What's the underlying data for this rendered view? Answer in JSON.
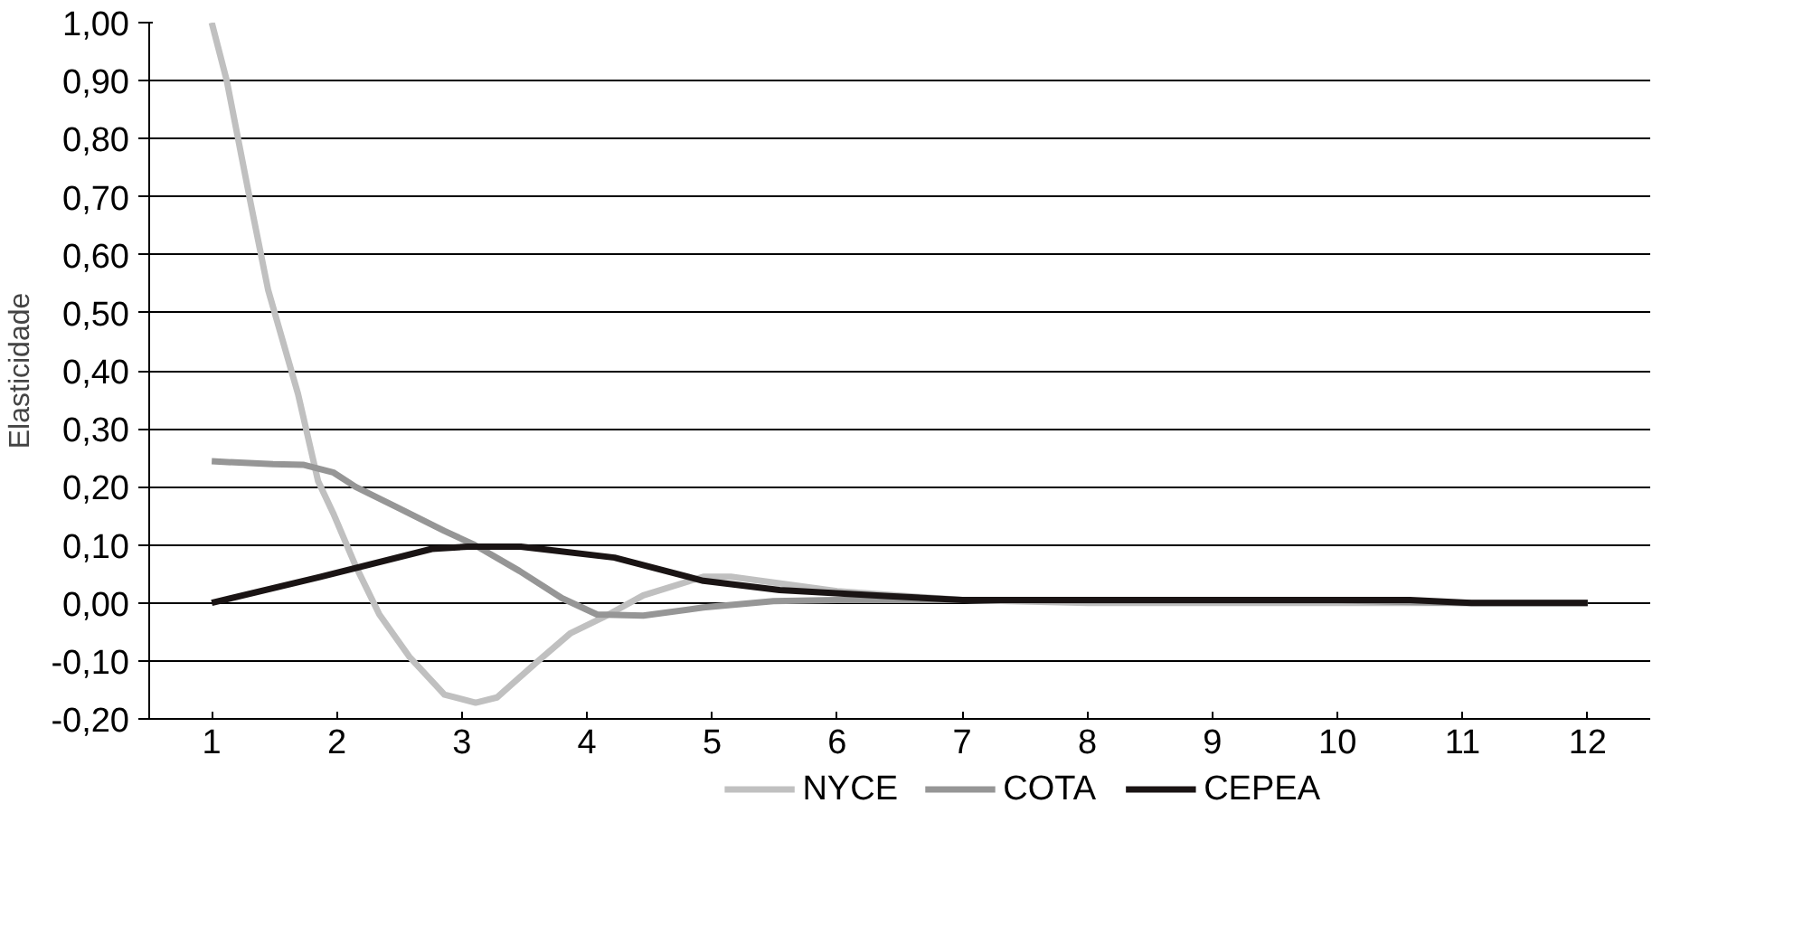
{
  "chart_data": {
    "type": "line",
    "ylabel": "Elasticidade",
    "legend": "bottom",
    "grid": "y",
    "marker": "none",
    "line_style": "solid",
    "xlim": [
      0.5,
      12.5
    ],
    "xticks": [
      1,
      2,
      3,
      4,
      5,
      6,
      7,
      8,
      9,
      10,
      11,
      12
    ],
    "ylim": [
      -0.2,
      1.0
    ],
    "yticks": [
      {
        "value": -0.2,
        "label": "-0,20"
      },
      {
        "value": -0.1,
        "label": "-0,10"
      },
      {
        "value": 0,
        "label": "0,00"
      },
      {
        "value": 0.1,
        "label": "0,10"
      },
      {
        "value": 0.2,
        "label": "0,20"
      },
      {
        "value": 0.3,
        "label": "0,30"
      },
      {
        "value": 0.4,
        "label": "0,40"
      },
      {
        "value": 0.5,
        "label": "0,50"
      },
      {
        "value": 0.6,
        "label": "0,60"
      },
      {
        "value": 0.7,
        "label": "0,70"
      },
      {
        "value": 0.8,
        "label": "0,80"
      },
      {
        "value": 0.9,
        "label": "0,90"
      },
      {
        "value": 1.0,
        "label": "1,00"
      }
    ],
    "series": [
      {
        "name": "NYCE",
        "color": "#c0c0c0",
        "x": [
          1,
          1.12,
          1.31,
          1.45,
          1.69,
          1.85,
          1.97,
          2.15,
          2.34,
          2.58,
          2.86,
          3.11,
          3.28,
          3.61,
          3.87,
          4.13,
          4.45,
          4.93,
          5.15,
          6,
          7,
          8,
          9,
          10,
          11,
          12
        ],
        "values": [
          1.0,
          0.9,
          0.69,
          0.54,
          0.36,
          0.21,
          0.155,
          0.064,
          -0.02,
          -0.093,
          -0.158,
          -0.172,
          -0.163,
          -0.1,
          -0.052,
          -0.025,
          0.013,
          0.045,
          0.045,
          0.02,
          0.005,
          0,
          0,
          0,
          0,
          0
        ]
      },
      {
        "name": "COTA",
        "color": "#969696",
        "x": [
          1,
          1.49,
          1.73,
          1.97,
          2.15,
          2.48,
          2.86,
          3.1,
          3.46,
          3.8,
          4.08,
          4.45,
          4.93,
          5.49,
          6,
          7,
          8,
          9,
          10,
          11,
          12
        ],
        "values": [
          0.244,
          0.239,
          0.238,
          0.225,
          0.2,
          0.165,
          0.124,
          0.1,
          0.055,
          0.008,
          -0.02,
          -0.022,
          -0.008,
          0.003,
          0.005,
          0.005,
          0.004,
          0.004,
          0.004,
          0.0,
          0.0
        ]
      },
      {
        "name": "CEPEA",
        "color": "#1a1414",
        "x": [
          1,
          1.87,
          2.76,
          3.05,
          3.47,
          4.22,
          4.93,
          5.54,
          6.38,
          7,
          8,
          9,
          10,
          10.58,
          11.07,
          12
        ],
        "values": [
          0,
          0.045,
          0.093,
          0.097,
          0.097,
          0.078,
          0.038,
          0.022,
          0.012,
          0.005,
          0.005,
          0.005,
          0.005,
          0.005,
          0,
          0
        ]
      }
    ]
  }
}
